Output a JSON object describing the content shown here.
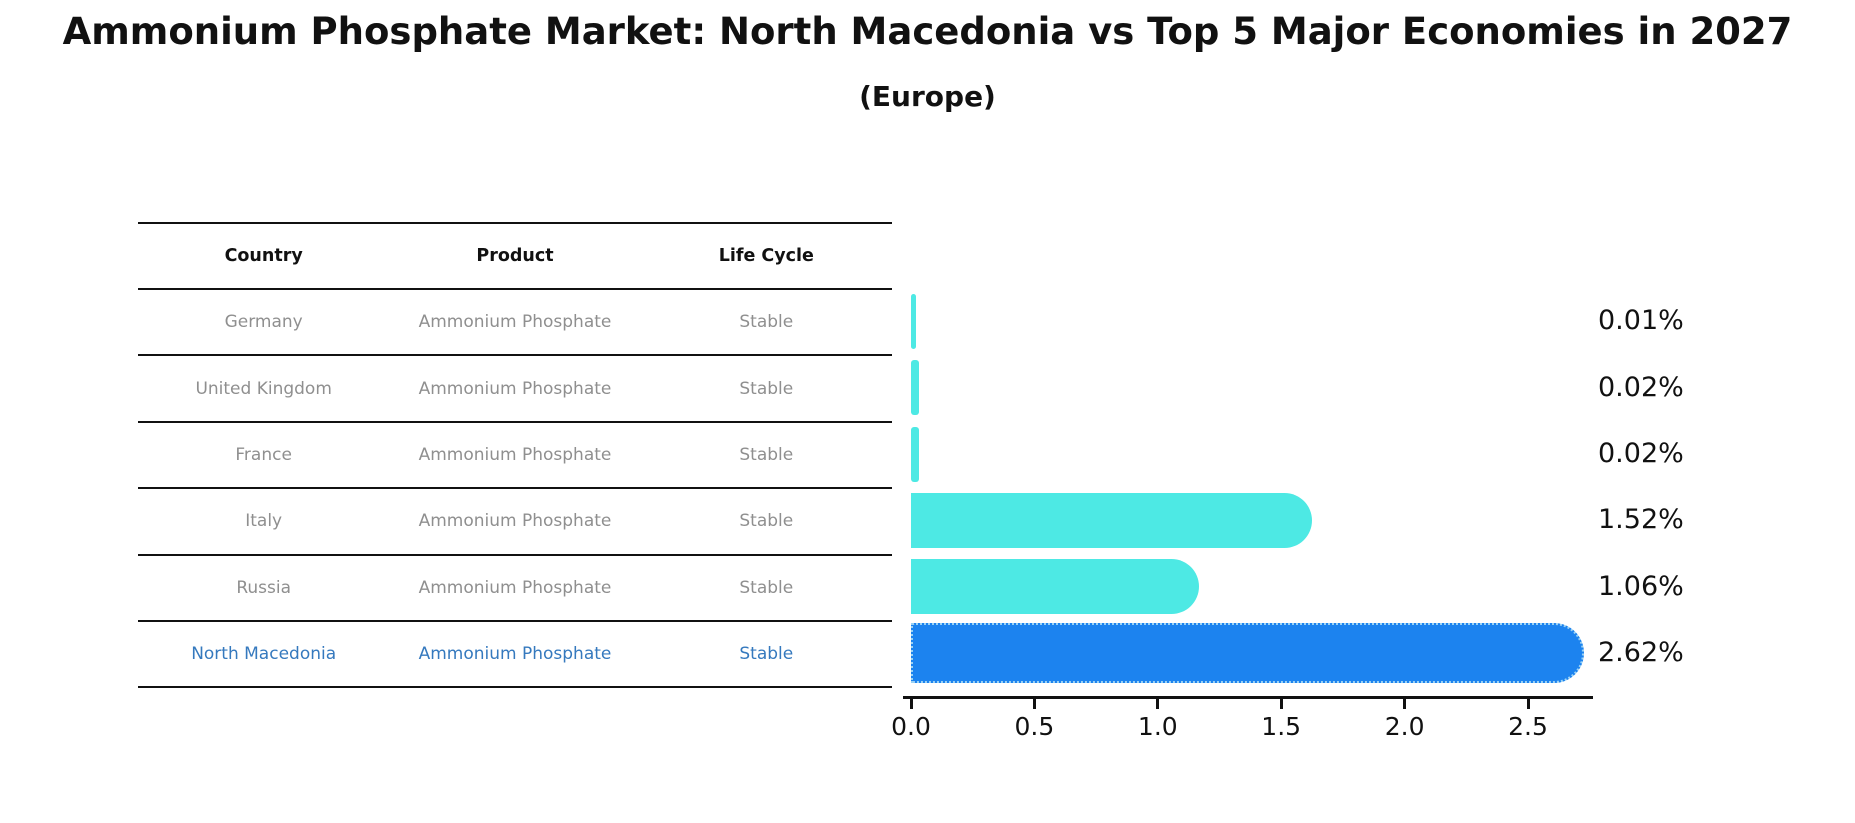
{
  "title": "Ammonium Phosphate Market: North Macedonia vs Top 5 Major Economies in 2027",
  "subtitle": "(Europe)",
  "table": {
    "headers": [
      "Country",
      "Product",
      "Life Cycle"
    ],
    "rows": [
      {
        "country": "Germany",
        "product": "Ammonium Phosphate",
        "life_cycle": "Stable",
        "highlight": false
      },
      {
        "country": "United Kingdom",
        "product": "Ammonium Phosphate",
        "life_cycle": "Stable",
        "highlight": false
      },
      {
        "country": "France",
        "product": "Ammonium Phosphate",
        "life_cycle": "Stable",
        "highlight": false
      },
      {
        "country": "Italy",
        "product": "Ammonium Phosphate",
        "life_cycle": "Stable",
        "highlight": false
      },
      {
        "country": "Russia",
        "product": "Ammonium Phosphate",
        "life_cycle": "Stable",
        "highlight": false
      },
      {
        "country": "North Macedonia",
        "product": "Ammonium Phosphate",
        "life_cycle": "Stable",
        "highlight": true
      }
    ]
  },
  "chart_data": {
    "type": "bar",
    "orientation": "horizontal",
    "title": "Ammonium Phosphate Market: North Macedonia vs Top 5 Major Economies in 2027",
    "subtitle": "(Europe)",
    "categories": [
      "Germany",
      "United Kingdom",
      "France",
      "Italy",
      "Russia",
      "North Macedonia"
    ],
    "values": [
      0.01,
      0.02,
      0.02,
      1.52,
      1.06,
      2.62
    ],
    "value_labels": [
      "0.01%",
      "0.02%",
      "0.02%",
      "1.52%",
      "1.06%",
      "2.62%"
    ],
    "x_ticks": [
      "0.0",
      "0.5",
      "1.0",
      "1.5",
      "2.0",
      "2.5"
    ],
    "x_tick_values": [
      0.0,
      0.5,
      1.0,
      1.5,
      2.0,
      2.5
    ],
    "xlim": [
      0,
      2.77
    ],
    "grid": false,
    "legend": "none",
    "bar_color": "#4DE9E4",
    "highlight_bar_color": "#1C83EF",
    "highlight_edge_color": "#9AD2F5",
    "highlight_index": 5,
    "axis_color": "#111111",
    "row_text_color": "#8f8f8f",
    "highlight_text_color": "#3579BE"
  }
}
